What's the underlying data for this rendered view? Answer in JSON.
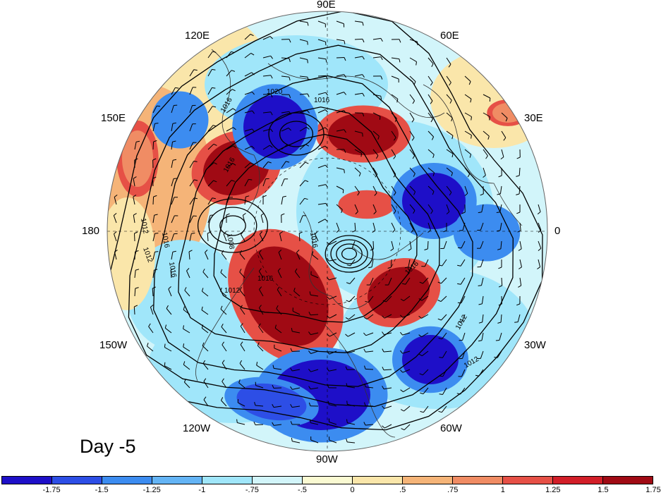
{
  "map": {
    "projection": "north polar stereographic",
    "longitude_labels": [
      {
        "key": "lon-90e",
        "text": "90E"
      },
      {
        "key": "lon-60e",
        "text": "60E"
      },
      {
        "key": "lon-30e",
        "text": "30E"
      },
      {
        "key": "lon-0",
        "text": "0"
      },
      {
        "key": "lon-30w",
        "text": "30W"
      },
      {
        "key": "lon-60w",
        "text": "60W"
      },
      {
        "key": "lon-90w",
        "text": "90W"
      },
      {
        "key": "lon-120w",
        "text": "120W"
      },
      {
        "key": "lon-150w",
        "text": "150W"
      },
      {
        "key": "lon-180",
        "text": "180"
      },
      {
        "key": "lon-150e",
        "text": "150E"
      },
      {
        "key": "lon-120e",
        "text": "120E"
      }
    ],
    "contour_labels": [
      "1020",
      "1016",
      "1016",
      "1012",
      "1012",
      "1016",
      "1008",
      "1016",
      "1016",
      "1012",
      "1016",
      "1016",
      "1016",
      "1012",
      "1012"
    ],
    "anomaly_features": [
      {
        "sign": "positive",
        "level": 1.75
      },
      {
        "sign": "positive",
        "level": 1.75
      },
      {
        "sign": "positive",
        "level": 1.75
      },
      {
        "sign": "positive",
        "level": 1.75
      },
      {
        "sign": "positive",
        "level": 1.25
      },
      {
        "sign": "positive",
        "level": 1.0
      },
      {
        "sign": "positive",
        "level": 1.0
      },
      {
        "sign": "negative",
        "level": -1.75
      },
      {
        "sign": "negative",
        "level": -1.75
      },
      {
        "sign": "negative",
        "level": -1.75
      },
      {
        "sign": "negative",
        "level": -1.75
      },
      {
        "sign": "negative",
        "level": -1.5
      },
      {
        "sign": "negative",
        "level": -1.25
      },
      {
        "sign": "negative",
        "level": -1.25
      }
    ]
  },
  "day_label": "Day -5",
  "colorbar": {
    "colors": [
      "#1e0fc8",
      "#2d4ee6",
      "#3c8cf0",
      "#64b4f5",
      "#a0e6fa",
      "#d2f5fa",
      "#fafad2",
      "#fae6aa",
      "#f5b478",
      "#f08c64",
      "#e65046",
      "#d21e28",
      "#a00a14"
    ],
    "tick_labels": [
      "-1.75",
      "-1.5",
      "-1.25",
      "-1",
      "-.75",
      "-.5",
      "0",
      ".5",
      ".75",
      "1",
      "1.25",
      "1.5",
      "1.75"
    ]
  }
}
